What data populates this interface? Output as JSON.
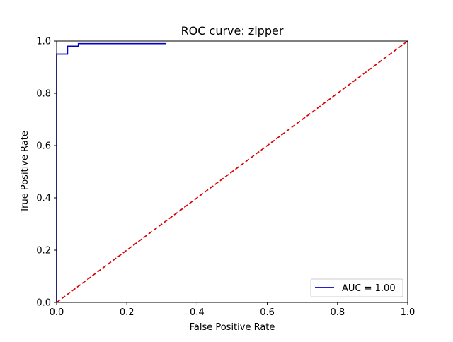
{
  "chart_data": {
    "type": "line",
    "title": "ROC curve: zipper",
    "xlabel": "False Positive Rate",
    "ylabel": "True Positive Rate",
    "xlim": [
      0.0,
      1.0
    ],
    "ylim": [
      0.0,
      1.0
    ],
    "xticks": [
      "0.0",
      "0.2",
      "0.4",
      "0.6",
      "0.8",
      "1.0"
    ],
    "yticks": [
      "0.0",
      "0.2",
      "0.4",
      "0.6",
      "0.8",
      "1.0"
    ],
    "grid": false,
    "legend": {
      "position": "lower right",
      "entries": [
        "AUC = 1.00"
      ]
    },
    "series": [
      {
        "name": "AUC = 1.00",
        "color": "#0000cc",
        "style": "solid",
        "x": [
          0.0,
          0.0,
          0.031,
          0.031,
          0.062,
          0.062,
          0.312
        ],
        "y": [
          0.0,
          0.95,
          0.95,
          0.98,
          0.98,
          0.99,
          0.99
        ]
      },
      {
        "color": "#dd0000",
        "style": "dashed",
        "x": [
          0.0,
          1.0
        ],
        "y": [
          0.0,
          1.0
        ]
      }
    ]
  }
}
